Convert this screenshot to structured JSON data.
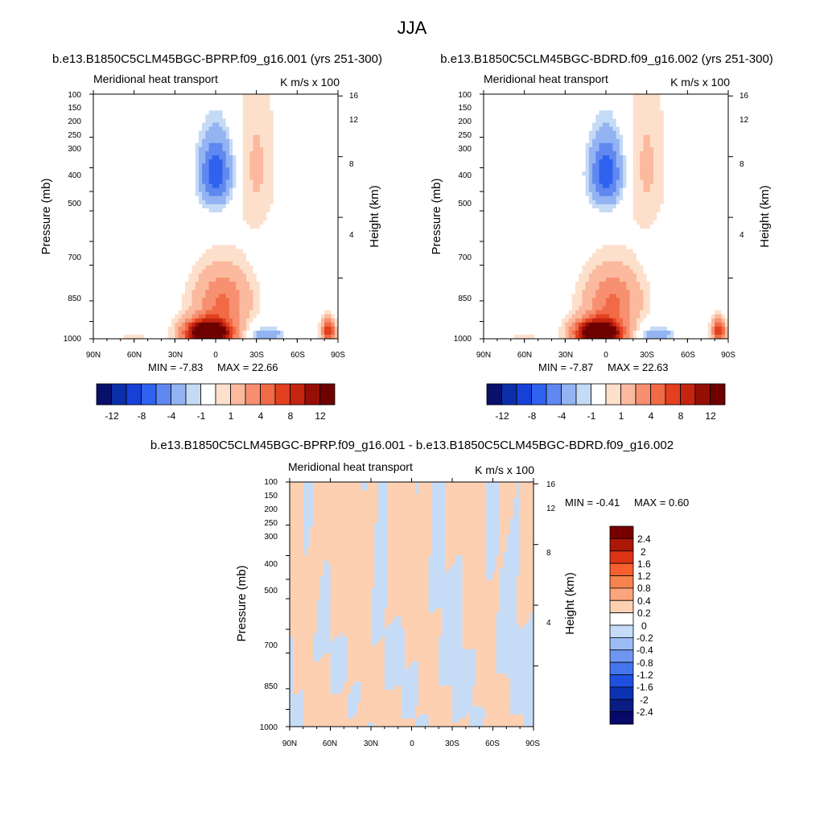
{
  "figure": {
    "season": "JJA"
  },
  "chart_data": [
    {
      "type": "heatmap",
      "title": "b.e13.B1850C5CLM45BGC-BPRP.f09_g16.001 (yrs 251-300)",
      "subtitle_left": "Meridional heat transport",
      "units": "K m/s x 100",
      "ylabel": "Pressure (mb)",
      "ylabel_right": "Height (km)",
      "x_ticks": [
        "90N",
        "60N",
        "30N",
        "0",
        "30S",
        "60S",
        "90S"
      ],
      "y_ticks": [
        "100",
        "150",
        "200",
        "250",
        "300",
        "400",
        "500",
        "700",
        "850",
        "1000"
      ],
      "y_right_ticks": [
        "16",
        "12",
        "8",
        "4"
      ],
      "min_label": "MIN =  -7.83",
      "max_label": "MAX =  22.66",
      "colorbar_labels": [
        "-12",
        "-8",
        "-4",
        "-1",
        "1",
        "4",
        "8",
        "12"
      ],
      "colors": [
        "#08106b",
        "#0a2fa8",
        "#1640d8",
        "#2f62ee",
        "#5f88f0",
        "#93b3f2",
        "#c5daf5",
        "#ffffff",
        "#fde0cc",
        "#fbb99e",
        "#f79070",
        "#f06a45",
        "#e2401e",
        "#c42410",
        "#960f06",
        "#6e0000"
      ],
      "features": [
        {
          "lat": 5,
          "p": 950,
          "value": 22.66,
          "sx": 16,
          "sy": 110
        },
        {
          "lat": -5,
          "p": 700,
          "value": 6,
          "sx": 20,
          "sy": 200
        },
        {
          "lat": 0,
          "p": 210,
          "value": -7.83,
          "sx": 12,
          "sy": 70
        },
        {
          "lat": -38,
          "p": 960,
          "value": -4,
          "sx": 12,
          "sy": 60
        },
        {
          "lat": -83,
          "p": 930,
          "value": 10,
          "sx": 5,
          "sy": 110
        },
        {
          "lat": -30,
          "p": 200,
          "value": 2,
          "sx": 14,
          "sy": 150
        },
        {
          "lat": 60,
          "p": 980,
          "value": 1.5,
          "sx": 10,
          "sy": 30
        },
        {
          "lat": -65,
          "p": 650,
          "value": -1,
          "sx": 20,
          "sy": 300
        }
      ]
    },
    {
      "type": "heatmap",
      "title": "b.e13.B1850C5CLM45BGC-BDRD.f09_g16.002 (yrs 251-300)",
      "subtitle_left": "Meridional heat transport",
      "units": "K m/s x 100",
      "ylabel": "Pressure (mb)",
      "ylabel_right": "Height (km)",
      "x_ticks": [
        "90N",
        "60N",
        "30N",
        "0",
        "30S",
        "60S",
        "90S"
      ],
      "y_ticks": [
        "100",
        "150",
        "200",
        "250",
        "300",
        "400",
        "500",
        "700",
        "850",
        "1000"
      ],
      "y_right_ticks": [
        "16",
        "12",
        "8",
        "4"
      ],
      "min_label": "MIN =  -7.87",
      "max_label": "MAX =  22.63",
      "colorbar_labels": [
        "-12",
        "-8",
        "-4",
        "-1",
        "1",
        "4",
        "8",
        "12"
      ],
      "colors": [
        "#08106b",
        "#0a2fa8",
        "#1640d8",
        "#2f62ee",
        "#5f88f0",
        "#93b3f2",
        "#c5daf5",
        "#ffffff",
        "#fde0cc",
        "#fbb99e",
        "#f79070",
        "#f06a45",
        "#e2401e",
        "#c42410",
        "#960f06",
        "#6e0000"
      ],
      "features": [
        {
          "lat": 5,
          "p": 950,
          "value": 22.63,
          "sx": 16,
          "sy": 110
        },
        {
          "lat": -5,
          "p": 700,
          "value": 6,
          "sx": 20,
          "sy": 200
        },
        {
          "lat": 0,
          "p": 210,
          "value": -7.87,
          "sx": 12,
          "sy": 70
        },
        {
          "lat": -38,
          "p": 960,
          "value": -4,
          "sx": 12,
          "sy": 60
        },
        {
          "lat": -83,
          "p": 930,
          "value": 10,
          "sx": 5,
          "sy": 110
        },
        {
          "lat": -30,
          "p": 200,
          "value": 2,
          "sx": 14,
          "sy": 150
        },
        {
          "lat": 60,
          "p": 980,
          "value": 1.5,
          "sx": 10,
          "sy": 30
        },
        {
          "lat": -65,
          "p": 650,
          "value": -1,
          "sx": 20,
          "sy": 300
        }
      ]
    },
    {
      "type": "heatmap",
      "title": "b.e13.B1850C5CLM45BGC-BPRP.f09_g16.001 - b.e13.B1850C5CLM45BGC-BDRD.f09_g16.002",
      "subtitle_left": "Meridional heat transport",
      "units": "K m/s x 100",
      "ylabel": "Pressure (mb)",
      "ylabel_right": "Height (km)",
      "x_ticks": [
        "90N",
        "60N",
        "30N",
        "0",
        "30S",
        "60S",
        "90S"
      ],
      "y_ticks": [
        "100",
        "150",
        "200",
        "250",
        "300",
        "400",
        "500",
        "700",
        "850",
        "1000"
      ],
      "y_right_ticks": [
        "16",
        "12",
        "8",
        "4"
      ],
      "min_label": "MIN =  -0.41",
      "max_label": "MAX =   0.60",
      "colorbar_labels": [
        "2.4",
        "2",
        "1.6",
        "1.2",
        "0.8",
        "0.4",
        "0.2",
        "0",
        "-0.2",
        "-0.4",
        "-0.8",
        "-1.2",
        "-1.6",
        "-2",
        "-2.4"
      ],
      "colors": [
        "#780000",
        "#ad1806",
        "#dc3414",
        "#f5602e",
        "#f7834e",
        "#fba47d",
        "#fdd0b2",
        "#ffffff",
        "#c6dcf6",
        "#9dbbf4",
        "#6e96f0",
        "#4475ec",
        "#1f50e0",
        "#0c32b4",
        "#0a1c84",
        "#06086a"
      ],
      "bands": [
        {
          "lat": 70,
          "width": 25,
          "sign": 1
        },
        {
          "lat": 40,
          "width": 18,
          "sign": 1
        },
        {
          "lat": 10,
          "width": 12,
          "sign": 1
        },
        {
          "lat": -15,
          "width": 10,
          "sign": 1
        },
        {
          "lat": -55,
          "width": 14,
          "sign": 1
        }
      ]
    }
  ]
}
